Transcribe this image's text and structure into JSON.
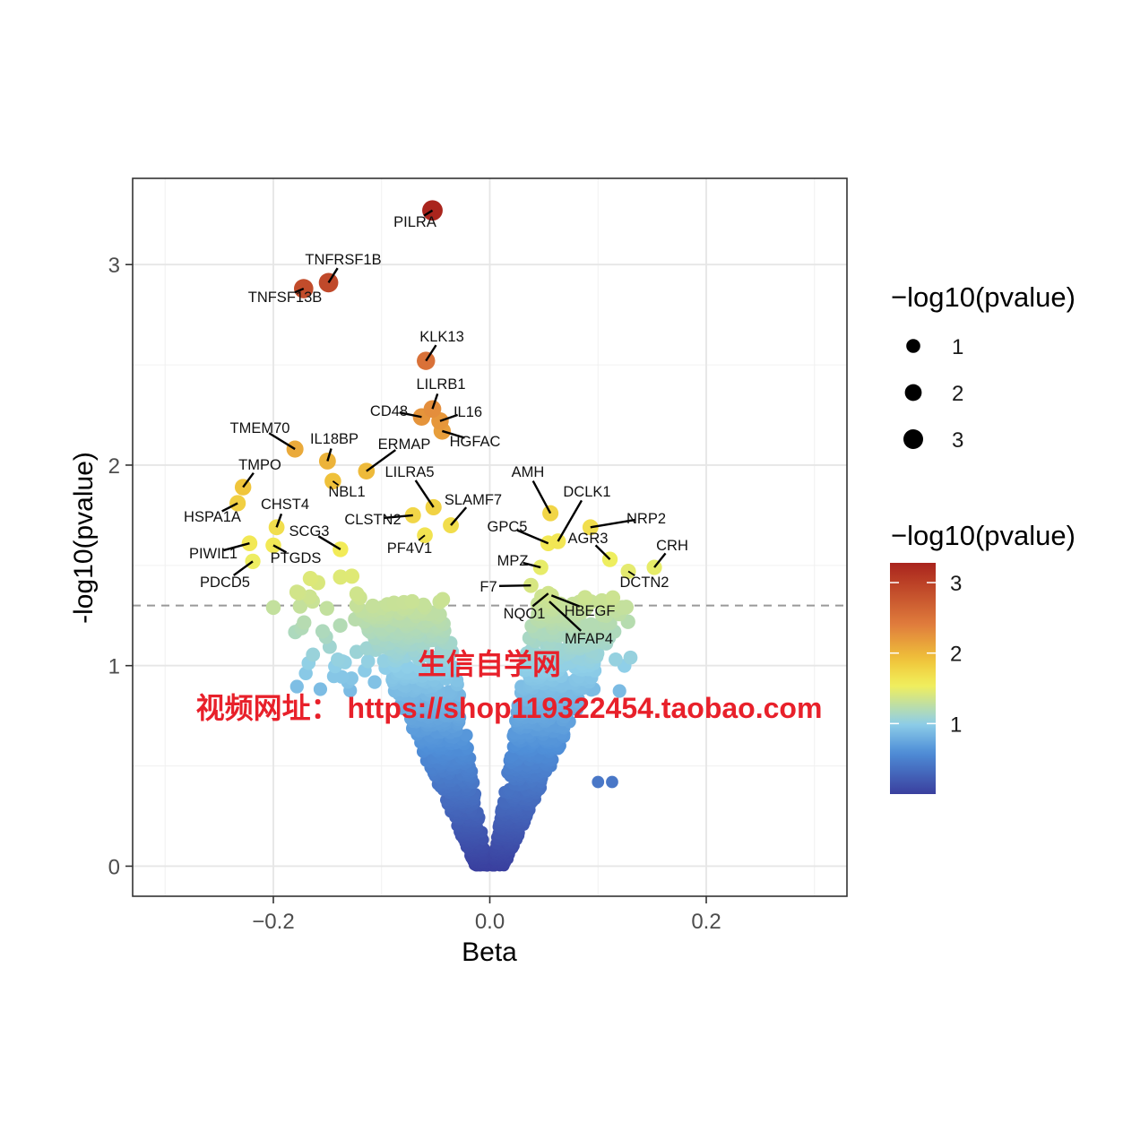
{
  "chart_data": {
    "type": "scatter",
    "title": "",
    "xlabel": "Beta",
    "ylabel": "-log10(pvalue)",
    "xlim": [
      -0.33,
      0.33
    ],
    "ylim": [
      -0.15,
      3.43
    ],
    "x_ticks": [
      -0.2,
      0.0,
      0.2
    ],
    "x_tick_labels": [
      "−0.2",
      "0.0",
      "0.2"
    ],
    "y_ticks": [
      0,
      1,
      2,
      3
    ],
    "y_tick_labels": [
      "0",
      "1",
      "2",
      "3"
    ],
    "threshold_line": {
      "y": 1.3,
      "style": "dashed",
      "color": "#999999"
    },
    "grid": true,
    "color_scale": {
      "colors": [
        "#3a3f9e",
        "#4f8fd8",
        "#8fcfe8",
        "#f2ef5a",
        "#f0c43a",
        "#e07d3c",
        "#a8221c"
      ],
      "domain": [
        0.0,
        0.6,
        1.0,
        1.55,
        1.9,
        2.4,
        3.3
      ]
    },
    "size_legend": {
      "title": "−log10(pvalue)",
      "entries": [
        {
          "label": "1",
          "value": 1
        },
        {
          "label": "2",
          "value": 2
        },
        {
          "label": "3",
          "value": 3
        }
      ]
    },
    "color_legend": {
      "title": "−log10(pvalue)",
      "labels": [
        {
          "label": "3",
          "value": 3
        },
        {
          "label": "2",
          "value": 2
        },
        {
          "label": "1",
          "value": 1
        }
      ],
      "range": [
        0.0,
        3.28
      ]
    },
    "labeled_points": [
      {
        "gene": "PILRA",
        "x": -0.053,
        "y": 3.27
      },
      {
        "gene": "TNFRSF1B",
        "x": -0.149,
        "y": 2.91
      },
      {
        "gene": "TNFSF13B",
        "x": -0.172,
        "y": 2.88
      },
      {
        "gene": "KLK13",
        "x": -0.059,
        "y": 2.52
      },
      {
        "gene": "LILRB1",
        "x": -0.053,
        "y": 2.28
      },
      {
        "gene": "CD48",
        "x": -0.063,
        "y": 2.24
      },
      {
        "gene": "IL16",
        "x": -0.046,
        "y": 2.22
      },
      {
        "gene": "HGFAC",
        "x": -0.044,
        "y": 2.17
      },
      {
        "gene": "TMEM70",
        "x": -0.18,
        "y": 2.08
      },
      {
        "gene": "IL18BP",
        "x": -0.15,
        "y": 2.02
      },
      {
        "gene": "ERMAP",
        "x": -0.114,
        "y": 1.97
      },
      {
        "gene": "NBL1",
        "x": -0.145,
        "y": 1.92
      },
      {
        "gene": "TMPO",
        "x": -0.228,
        "y": 1.89
      },
      {
        "gene": "LILRA5",
        "x": -0.052,
        "y": 1.79
      },
      {
        "gene": "HSPA1A",
        "x": -0.233,
        "y": 1.81
      },
      {
        "gene": "AMH",
        "x": 0.056,
        "y": 1.76
      },
      {
        "gene": "SLAMF7",
        "x": -0.036,
        "y": 1.7
      },
      {
        "gene": "CHST4",
        "x": -0.197,
        "y": 1.69
      },
      {
        "gene": "NRP2",
        "x": 0.093,
        "y": 1.69
      },
      {
        "gene": "DCLK1",
        "x": 0.063,
        "y": 1.62
      },
      {
        "gene": "CLSTN2",
        "x": -0.071,
        "y": 1.75
      },
      {
        "gene": "PF4V1",
        "x": -0.06,
        "y": 1.65
      },
      {
        "gene": "SCG3",
        "x": -0.138,
        "y": 1.58
      },
      {
        "gene": "GPC5",
        "x": 0.054,
        "y": 1.61
      },
      {
        "gene": "AGR3",
        "x": 0.111,
        "y": 1.53
      },
      {
        "gene": "PIWIL1",
        "x": -0.222,
        "y": 1.61
      },
      {
        "gene": "PTGDS",
        "x": -0.2,
        "y": 1.6
      },
      {
        "gene": "CRH",
        "x": 0.152,
        "y": 1.49
      },
      {
        "gene": "MPZ",
        "x": 0.047,
        "y": 1.49
      },
      {
        "gene": "PDCD5",
        "x": -0.219,
        "y": 1.52
      },
      {
        "gene": "DCTN2",
        "x": 0.128,
        "y": 1.47
      },
      {
        "gene": "F7",
        "x": 0.038,
        "y": 1.4
      },
      {
        "gene": "NQO1",
        "x": 0.054,
        "y": 1.36
      },
      {
        "gene": "HBEGF",
        "x": 0.057,
        "y": 1.35
      },
      {
        "gene": "MFAP4",
        "x": 0.055,
        "y": 1.32
      }
    ]
  },
  "watermark": {
    "line1": "生信自学网",
    "line2": "视频网址： https://shop119322454.taobao.com"
  }
}
